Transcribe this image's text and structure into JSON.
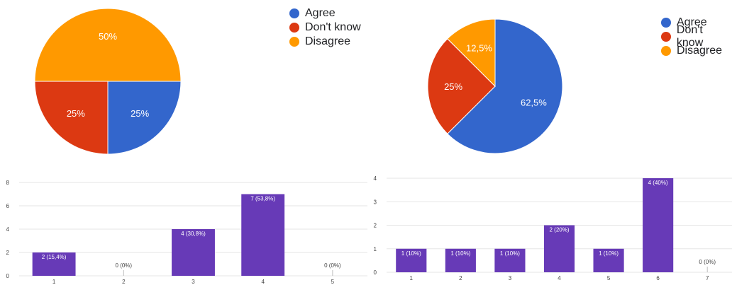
{
  "colors": {
    "agree": "#3366cc",
    "dont_know": "#dc3912",
    "disagree": "#ff9900",
    "bar": "#673ab7",
    "grid": "#e6e6e6",
    "axis_text": "#444444"
  },
  "chart_data": [
    {
      "type": "pie",
      "categories": [
        "Agree",
        "Don't know",
        "Disagree"
      ],
      "values": [
        25,
        25,
        50
      ],
      "labels": [
        "25%",
        "25%",
        "50%"
      ],
      "legend": "right"
    },
    {
      "type": "pie",
      "categories": [
        "Agree",
        "Don't know",
        "Disagree"
      ],
      "values": [
        62.5,
        25,
        12.5
      ],
      "labels": [
        "62,5%",
        "25%",
        "12,5%"
      ],
      "legend": "right"
    },
    {
      "type": "bar",
      "categories": [
        "1",
        "2",
        "3",
        "4",
        "5"
      ],
      "values": [
        2,
        0,
        4,
        7,
        0
      ],
      "labels": [
        "2 (15,4%)",
        "0 (0%)",
        "4 (30,8%)",
        "7 (53,8%)",
        "0 (0%)"
      ],
      "ylim": [
        0,
        8
      ],
      "yticks": [
        0,
        2,
        4,
        6,
        8
      ],
      "grid": true
    },
    {
      "type": "bar",
      "categories": [
        "1",
        "2",
        "3",
        "4",
        "5",
        "6",
        "7"
      ],
      "values": [
        1,
        1,
        1,
        2,
        1,
        4,
        0
      ],
      "labels": [
        "1 (10%)",
        "1 (10%)",
        "1 (10%)",
        "2 (20%)",
        "1 (10%)",
        "4 (40%)",
        "0 (0%)"
      ],
      "ylim": [
        0,
        4
      ],
      "yticks": [
        0,
        1,
        2,
        3,
        4
      ],
      "grid": true
    }
  ]
}
